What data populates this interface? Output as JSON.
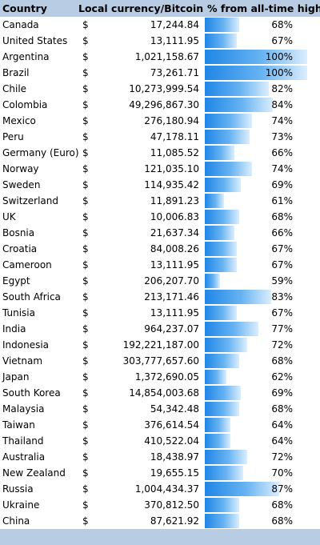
{
  "header": {
    "country": "Country",
    "currency": "Local currency/Bitcoin",
    "percent": "% from all-time high"
  },
  "rows": [
    {
      "country": "Canada",
      "currency": "$",
      "value": "17,244.84",
      "pct_label": "68%",
      "pct": 68
    },
    {
      "country": "United States",
      "currency": "$",
      "value": "13,111.95",
      "pct_label": "67%",
      "pct": 67
    },
    {
      "country": "Argentina",
      "currency": "$",
      "value": "1,021,158.67",
      "pct_label": "100%",
      "pct": 100
    },
    {
      "country": "Brazil",
      "currency": "$",
      "value": "73,261.71",
      "pct_label": "100%",
      "pct": 100
    },
    {
      "country": "Chile",
      "currency": "$",
      "value": "10,273,999.54",
      "pct_label": "82%",
      "pct": 82
    },
    {
      "country": "Colombia",
      "currency": "$",
      "value": "49,296,867.30",
      "pct_label": "84%",
      "pct": 84
    },
    {
      "country": "Mexico",
      "currency": "$",
      "value": "276,180.94",
      "pct_label": "74%",
      "pct": 74
    },
    {
      "country": "Peru",
      "currency": "$",
      "value": "47,178.11",
      "pct_label": "73%",
      "pct": 73
    },
    {
      "country": "Germany (Euro)",
      "currency": "$",
      "value": "11,085.52",
      "pct_label": "66%",
      "pct": 66
    },
    {
      "country": "Norway",
      "currency": "$",
      "value": "121,035.10",
      "pct_label": "74%",
      "pct": 74
    },
    {
      "country": "Sweden",
      "currency": "$",
      "value": "114,935.42",
      "pct_label": "69%",
      "pct": 69
    },
    {
      "country": "Switzerland",
      "currency": "$",
      "value": "11,891.23",
      "pct_label": "61%",
      "pct": 61
    },
    {
      "country": "UK",
      "currency": "$",
      "value": "10,006.83",
      "pct_label": "68%",
      "pct": 68
    },
    {
      "country": "Bosnia",
      "currency": "$",
      "value": "21,637.34",
      "pct_label": "66%",
      "pct": 66
    },
    {
      "country": "Croatia",
      "currency": "$",
      "value": "84,008.26",
      "pct_label": "67%",
      "pct": 67
    },
    {
      "country": "Cameroon",
      "currency": "$",
      "value": "13,111.95",
      "pct_label": "67%",
      "pct": 67
    },
    {
      "country": "Egypt",
      "currency": "$",
      "value": "206,207.70",
      "pct_label": "59%",
      "pct": 59
    },
    {
      "country": "South Africa",
      "currency": "$",
      "value": "213,171.46",
      "pct_label": "83%",
      "pct": 83
    },
    {
      "country": "Tunisia",
      "currency": "$",
      "value": "13,111.95",
      "pct_label": "67%",
      "pct": 67
    },
    {
      "country": "India",
      "currency": "$",
      "value": "964,237.07",
      "pct_label": "77%",
      "pct": 77
    },
    {
      "country": "Indonesia",
      "currency": "$",
      "value": "192,221,187.00",
      "pct_label": "72%",
      "pct": 72
    },
    {
      "country": "Vietnam",
      "currency": "$",
      "value": "303,777,657.60",
      "pct_label": "68%",
      "pct": 68
    },
    {
      "country": "Japan",
      "currency": "$",
      "value": "1,372,690.05",
      "pct_label": "62%",
      "pct": 62
    },
    {
      "country": "South Korea",
      "currency": "$",
      "value": "14,854,003.68",
      "pct_label": "69%",
      "pct": 69
    },
    {
      "country": "Malaysia",
      "currency": "$",
      "value": "54,342.48",
      "pct_label": "68%",
      "pct": 68
    },
    {
      "country": "Taiwan",
      "currency": "$",
      "value": "376,614.54",
      "pct_label": "64%",
      "pct": 64
    },
    {
      "country": "Thailand",
      "currency": "$",
      "value": "410,522.04",
      "pct_label": "64%",
      "pct": 64
    },
    {
      "country": "Australia",
      "currency": "$",
      "value": "18,438.97",
      "pct_label": "72%",
      "pct": 72
    },
    {
      "country": "New Zealand",
      "currency": "$",
      "value": "19,655.15",
      "pct_label": "70%",
      "pct": 70
    },
    {
      "country": "Russia",
      "currency": "$",
      "value": "1,004,434.37",
      "pct_label": "87%",
      "pct": 87
    },
    {
      "country": "Ukraine",
      "currency": "$",
      "value": "370,812.50",
      "pct_label": "68%",
      "pct": 68
    },
    {
      "country": "China",
      "currency": "$",
      "value": "87,621.92",
      "pct_label": "68%",
      "pct": 68
    }
  ],
  "bar_scale": {
    "min_pct": 55,
    "max_pct": 100
  },
  "colors": {
    "header_bg": "#b8cce4",
    "bar_start": "#1f86e6",
    "bar_end": "#dbeefe"
  }
}
